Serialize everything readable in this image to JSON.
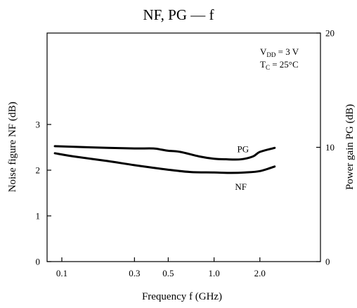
{
  "chart_data": {
    "type": "line",
    "title": "NF, PG — f",
    "xlabel": "Frequency  f  (GHz)",
    "ylabel_left": "Noise figure  NF  (dB)",
    "ylabel_right": "Power gain  PG  (dB)",
    "x_scale": "log",
    "xlim": [
      0.08,
      5.0
    ],
    "ylim_left": [
      0,
      5
    ],
    "ylim_right": [
      0,
      20
    ],
    "x_ticks": [
      0.1,
      0.3,
      0.5,
      1.0,
      2.0
    ],
    "x_tick_labels": [
      "0.1",
      "0.3",
      "0.5",
      "1.0",
      "2.0"
    ],
    "left_ticks": [
      0,
      1,
      2,
      3
    ],
    "left_tick_labels": [
      "0",
      "1",
      "2",
      "3"
    ],
    "right_ticks": [
      0,
      10,
      20
    ],
    "right_tick_labels": [
      "0",
      "10",
      "20"
    ],
    "grid": false,
    "conditions": {
      "vdd_main": "V",
      "vdd_sub": "DD",
      "vdd_value": " = 3 V",
      "tc_main": "T",
      "tc_sub": "C",
      "tc_value": " = 25°C"
    },
    "series": [
      {
        "name": "PG",
        "axis": "right",
        "x": [
          0.09,
          0.12,
          0.2,
          0.3,
          0.4,
          0.45,
          0.5,
          0.6,
          0.8,
          1.0,
          1.2,
          1.5,
          1.8,
          2.0,
          2.5
        ],
        "y": [
          10.1,
          10.05,
          9.95,
          9.9,
          9.9,
          9.8,
          9.7,
          9.6,
          9.2,
          9.0,
          8.95,
          8.95,
          9.2,
          9.6,
          9.95
        ]
      },
      {
        "name": "NF",
        "axis": "left",
        "x": [
          0.09,
          0.12,
          0.2,
          0.3,
          0.5,
          0.7,
          1.0,
          1.3,
          1.6,
          2.0,
          2.5
        ],
        "y": [
          2.37,
          2.3,
          2.2,
          2.11,
          2.01,
          1.96,
          1.95,
          1.94,
          1.95,
          1.98,
          2.08
        ]
      }
    ]
  }
}
